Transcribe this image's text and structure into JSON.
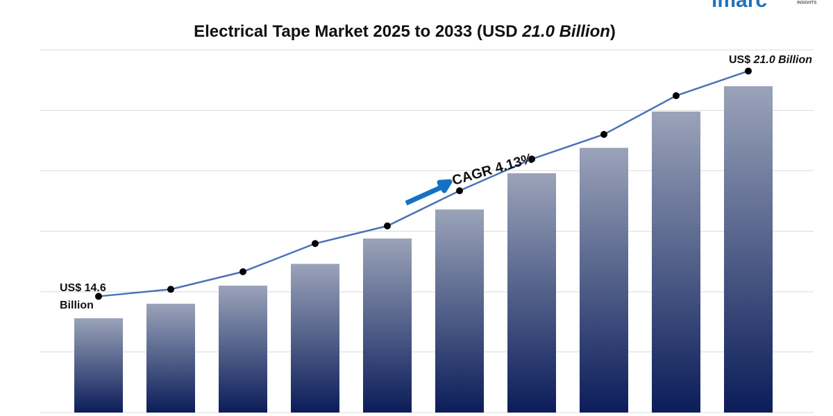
{
  "chart_data": {
    "type": "bar",
    "title_parts": [
      "Electrical Tape Market 2025 to 2033 (USD ",
      "21.0 Billion",
      ")"
    ],
    "logo": {
      "name": "imarc",
      "tagline": "INSIGHTS"
    },
    "categories": [
      null,
      null,
      null,
      null,
      null,
      null,
      null,
      null,
      null,
      null
    ],
    "series": [
      {
        "type": "bar",
        "color_top": "#9aa3b9",
        "color": "#0b1d5a",
        "values": [
          14.6,
          15.0,
          15.5,
          16.1,
          16.8,
          17.6,
          18.6,
          19.3,
          20.3,
          21.0
        ]
      },
      {
        "type": "line",
        "axis": "y2",
        "color": "#4a72b8",
        "marker_color": "#000000",
        "values": [
          14.6,
          14.8,
          15.3,
          16.1,
          16.6,
          17.6,
          18.5,
          19.2,
          20.3,
          21.0
        ]
      }
    ],
    "ylim": [
      12,
      22
    ],
    "yticks": [
      12,
      13.67,
      15.33,
      17,
      18.67,
      20.33,
      22
    ],
    "y2lim": [
      11.3,
      21.6
    ],
    "grid": true,
    "annotations": {
      "start": [
        "US$ 14.6",
        "Billion"
      ],
      "end": [
        "US$ ",
        "21.0 Billion"
      ],
      "cagr": "CAGR 4.13%"
    }
  }
}
